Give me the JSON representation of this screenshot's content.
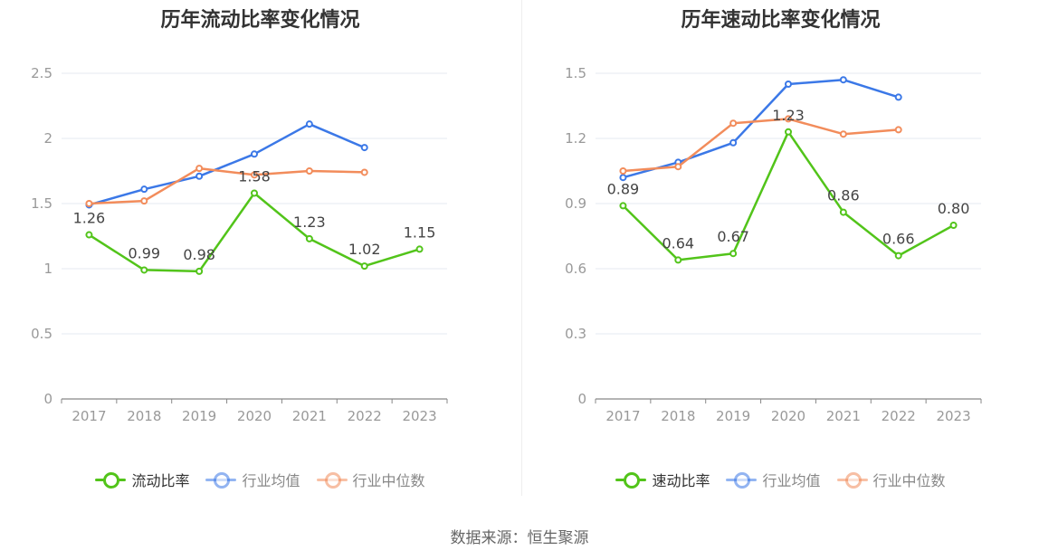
{
  "source": "数据来源：恒生聚源",
  "chart_data": [
    {
      "type": "line",
      "title": "历年流动比率变化情况",
      "x": [
        "2017",
        "2018",
        "2019",
        "2020",
        "2021",
        "2022",
        "2023"
      ],
      "ylim": [
        0,
        2.5
      ],
      "yticks": [
        "0",
        "0.5",
        "1",
        "1.5",
        "2",
        "2.5"
      ],
      "yticks_values": [
        0,
        0.5,
        1,
        1.5,
        2,
        2.5
      ],
      "grid": true,
      "legend_position": "bottom",
      "series": [
        {
          "name": "流动比率",
          "values": [
            1.26,
            0.99,
            0.98,
            1.58,
            1.23,
            1.02,
            1.15
          ],
          "labels": [
            "1.26",
            "0.99",
            "0.98",
            "1.58",
            "1.23",
            "1.02",
            "1.15"
          ],
          "color": "#52c41a"
        },
        {
          "name": "行业均值",
          "values": [
            1.49,
            1.61,
            1.71,
            1.88,
            2.11,
            1.93,
            null
          ],
          "color": "#3b78e7"
        },
        {
          "name": "行业中位数",
          "values": [
            1.5,
            1.52,
            1.77,
            1.72,
            1.75,
            1.74,
            null
          ],
          "color": "#f28c5b"
        }
      ]
    },
    {
      "type": "line",
      "title": "历年速动比率变化情况",
      "x": [
        "2017",
        "2018",
        "2019",
        "2020",
        "2021",
        "2022",
        "2023"
      ],
      "ylim": [
        0,
        1.5
      ],
      "yticks": [
        "0",
        "0.3",
        "0.6",
        "0.9",
        "1.2",
        "1.5"
      ],
      "yticks_values": [
        0,
        0.3,
        0.6,
        0.9,
        1.2,
        1.5
      ],
      "grid": true,
      "legend_position": "bottom",
      "series": [
        {
          "name": "速动比率",
          "values": [
            0.89,
            0.64,
            0.67,
            1.23,
            0.86,
            0.66,
            0.8
          ],
          "labels": [
            "0.89",
            "0.64",
            "0.67",
            "1.23",
            "0.86",
            "0.66",
            "0.80"
          ],
          "color": "#52c41a"
        },
        {
          "name": "行业均值",
          "values": [
            1.02,
            1.09,
            1.18,
            1.45,
            1.47,
            1.39,
            null
          ],
          "color": "#3b78e7"
        },
        {
          "name": "行业中位数",
          "values": [
            1.05,
            1.07,
            1.27,
            1.29,
            1.22,
            1.24,
            null
          ],
          "color": "#f28c5b"
        }
      ]
    }
  ]
}
